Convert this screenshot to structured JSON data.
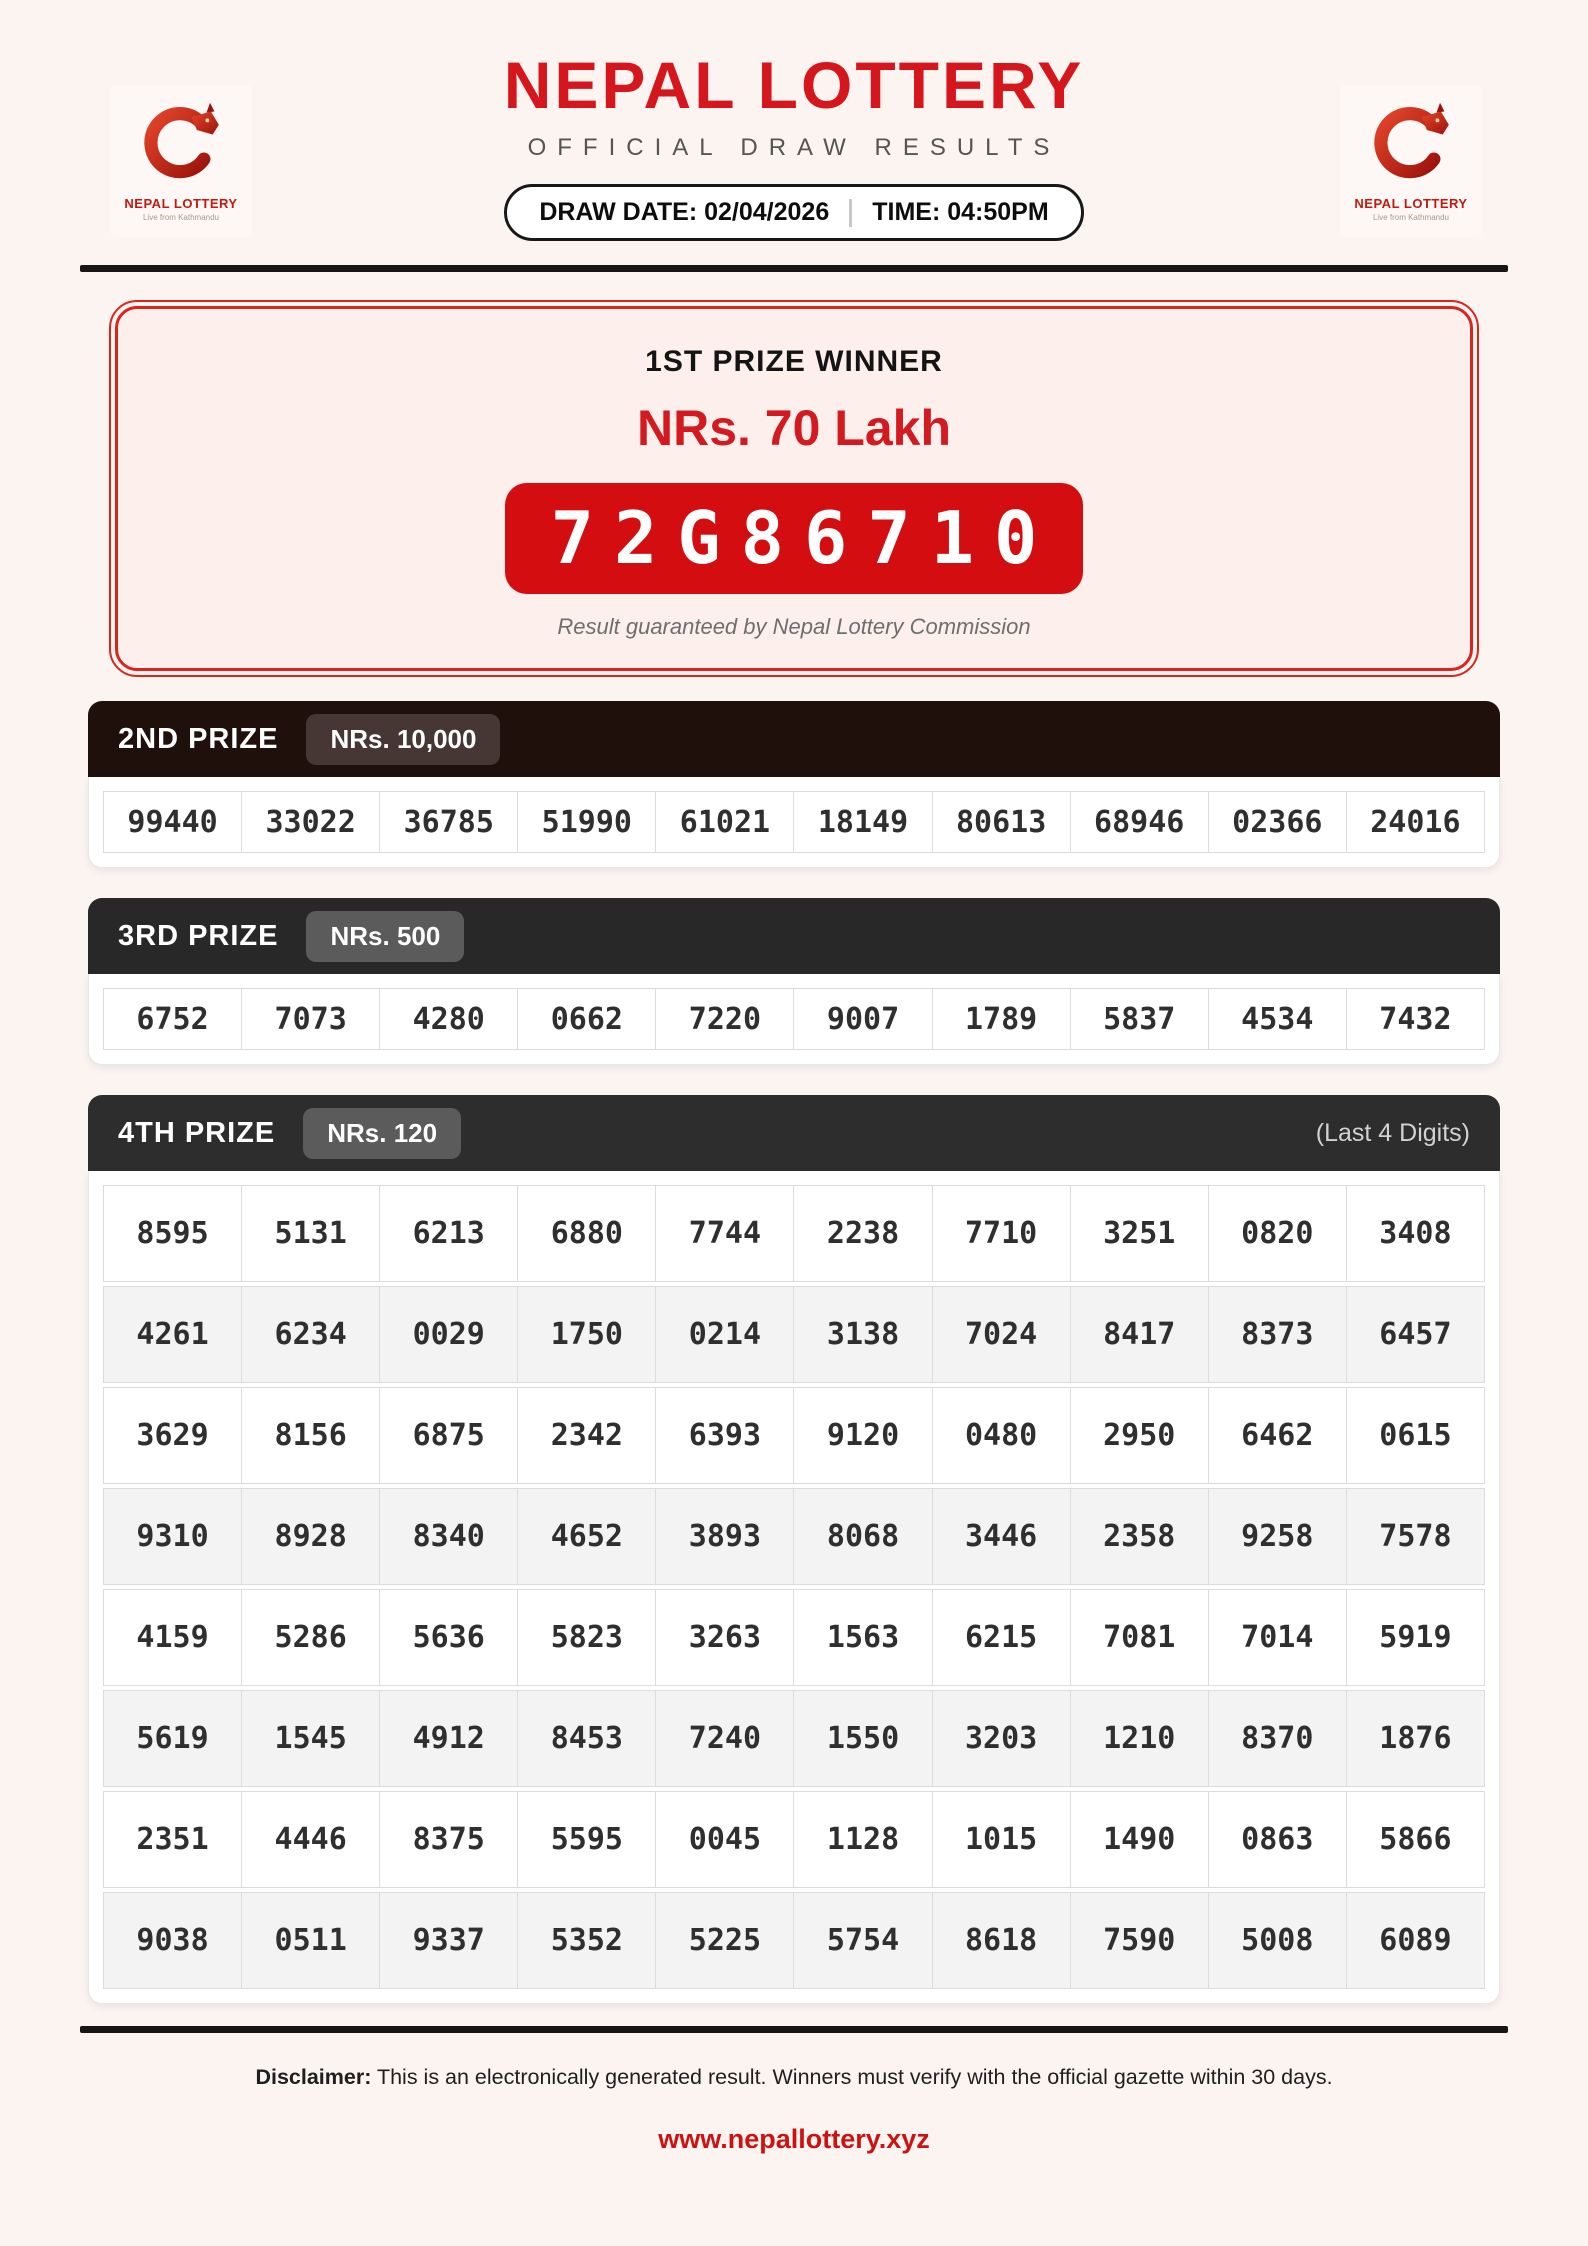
{
  "header": {
    "title": "NEPAL LOTTERY",
    "subtitle": "OFFICIAL DRAW RESULTS",
    "draw_date_label": "DRAW DATE: 02/04/2026",
    "time_label": "TIME: 04:50PM",
    "logo": {
      "icon": "dragon-circle-icon",
      "name": "NEPAL LOTTERY",
      "tagline": "Live from Kathmandu"
    }
  },
  "first_prize": {
    "heading": "1ST PRIZE WINNER",
    "amount": "NRs. 70 Lakh",
    "number": "72G86710",
    "guarantee": "Result guaranteed by Nepal Lottery Commission"
  },
  "second_prize": {
    "label": "2ND PRIZE",
    "amount": "NRs. 10,000",
    "numbers": [
      "99440",
      "33022",
      "36785",
      "51990",
      "61021",
      "18149",
      "80613",
      "68946",
      "02366",
      "24016"
    ]
  },
  "third_prize": {
    "label": "3RD PRIZE",
    "amount": "NRs. 500",
    "numbers": [
      "6752",
      "7073",
      "4280",
      "0662",
      "7220",
      "9007",
      "1789",
      "5837",
      "4534",
      "7432"
    ]
  },
  "fourth_prize": {
    "label": "4TH PRIZE",
    "amount": "NRs. 120",
    "note": "(Last 4 Digits)",
    "rows": [
      [
        "8595",
        "5131",
        "6213",
        "6880",
        "7744",
        "2238",
        "7710",
        "3251",
        "0820",
        "3408"
      ],
      [
        "4261",
        "6234",
        "0029",
        "1750",
        "0214",
        "3138",
        "7024",
        "8417",
        "8373",
        "6457"
      ],
      [
        "3629",
        "8156",
        "6875",
        "2342",
        "6393",
        "9120",
        "0480",
        "2950",
        "6462",
        "0615"
      ],
      [
        "9310",
        "8928",
        "8340",
        "4652",
        "3893",
        "8068",
        "3446",
        "2358",
        "9258",
        "7578"
      ],
      [
        "4159",
        "5286",
        "5636",
        "5823",
        "3263",
        "1563",
        "6215",
        "7081",
        "7014",
        "5919"
      ],
      [
        "5619",
        "1545",
        "4912",
        "8453",
        "7240",
        "1550",
        "3203",
        "1210",
        "8370",
        "1876"
      ],
      [
        "2351",
        "4446",
        "8375",
        "5595",
        "0045",
        "1128",
        "1015",
        "1490",
        "0863",
        "5866"
      ],
      [
        "9038",
        "0511",
        "9337",
        "5352",
        "5225",
        "5754",
        "8618",
        "7590",
        "5008",
        "6089"
      ]
    ]
  },
  "footer": {
    "disclaimer_label": "Disclaimer:",
    "disclaimer_text": "This is an electronically generated result. Winners must verify with the official gazette within 30 days.",
    "website": "www.nepallottery.xyz"
  },
  "colors": {
    "accent_red": "#d6161d",
    "plate_red": "#d30d10",
    "page_bg": "#fcf4f1",
    "first_prize_bg": "#fdf0ec",
    "second_bar": "#20100c",
    "third_bar": "#282828",
    "fourth_bar": "#2d2d2d",
    "website_red": "#cc1313"
  }
}
